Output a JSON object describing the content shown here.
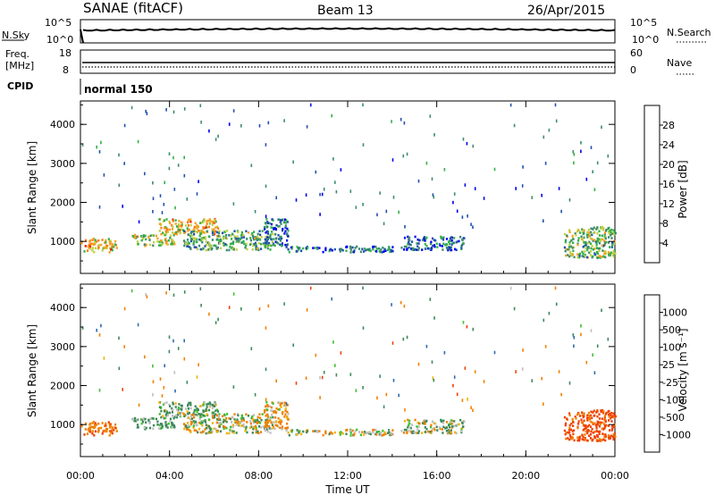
{
  "header": {
    "title": "SANAE (fitACF)",
    "beam": "Beam 13",
    "date": "26/Apr/2015"
  },
  "top_panels": {
    "nsky_label": "N.Sky",
    "nsky_ticks": [
      "10^5",
      "10^0"
    ],
    "nsearch_label": "N.Search",
    "nsearch_ticks": [
      "10^5",
      "10^0"
    ],
    "freq_label": "Freq.",
    "freq_unit": "[MHz]",
    "freq_ticks": [
      "18",
      "8"
    ],
    "nave_label": "Nave",
    "nave_ticks": [
      "60",
      "0"
    ],
    "cpid_label": "CPID",
    "cpid_value": "normal 150"
  },
  "x_axis": {
    "label": "Time UT",
    "ticks": [
      "00:00",
      "04:00",
      "08:00",
      "12:00",
      "16:00",
      "20:00",
      "00:00"
    ]
  },
  "colorbars": {
    "power": {
      "label": "Power [dB]",
      "ticks": [
        "28",
        "24",
        "20",
        "16",
        "12",
        "8",
        "4"
      ],
      "colors": [
        "#0000ee",
        "#2050b0",
        "#3c8c6c",
        "#33b04a",
        "#c0d040",
        "#f4a020",
        "#ff7a10",
        "#ee2000"
      ]
    },
    "velocity": {
      "label": "Velocity [m s⁻¹]",
      "ticks": [
        "1000",
        "500",
        "100",
        "25",
        "-25",
        "-100",
        "-500",
        "-1000"
      ],
      "colors": [
        "#1e3cc8",
        "#2e6ab0",
        "#3c8a5a",
        "#40c030",
        "#bfbfbf",
        "#f0b000",
        "#f08000",
        "#f04000",
        "#e00000"
      ]
    }
  },
  "chart_data": [
    {
      "type": "heatmap",
      "title": "",
      "xlabel": "Time UT",
      "ylabel": "Slant Range [km]",
      "y_ticks": [
        "4000",
        "3000",
        "2000",
        "1000"
      ],
      "xlim": [
        0,
        24
      ],
      "ylim": [
        180,
        4600
      ],
      "quantity": "Power [dB]",
      "zlim": [
        0,
        30
      ],
      "regions": [
        {
          "t": [
            0.0,
            1.6
          ],
          "r": [
            750,
            1100
          ],
          "value": 20
        },
        {
          "t": [
            2.3,
            4.2
          ],
          "r": [
            900,
            1200
          ],
          "value": 16
        },
        {
          "t": [
            3.5,
            6.2
          ],
          "r": [
            1200,
            1600
          ],
          "value": 20
        },
        {
          "t": [
            4.6,
            8.6
          ],
          "r": [
            800,
            1300
          ],
          "value": 12
        },
        {
          "t": [
            8.2,
            9.3
          ],
          "r": [
            900,
            1600
          ],
          "value": 8
        },
        {
          "t": [
            9.2,
            14.5
          ],
          "r": [
            750,
            900
          ],
          "value": 8
        },
        {
          "t": [
            14.5,
            17.2
          ],
          "r": [
            800,
            1150
          ],
          "value": 6
        },
        {
          "t": [
            21.7,
            24.0
          ],
          "r": [
            600,
            1400
          ],
          "value": 14
        }
      ]
    },
    {
      "type": "heatmap",
      "title": "",
      "xlabel": "Time UT",
      "ylabel": "Slant Range [km]",
      "y_ticks": [
        "4000",
        "3000",
        "2000",
        "1000"
      ],
      "xlim": [
        0,
        24
      ],
      "ylim": [
        180,
        4600
      ],
      "quantity": "Velocity [m s⁻¹]",
      "zlim": [
        -1000,
        1000
      ],
      "regions": [
        {
          "t": [
            0.0,
            1.6
          ],
          "r": [
            750,
            1100
          ],
          "value": -200
        },
        {
          "t": [
            2.3,
            4.2
          ],
          "r": [
            900,
            1200
          ],
          "value": 100
        },
        {
          "t": [
            3.5,
            6.2
          ],
          "r": [
            1200,
            1600
          ],
          "value": 80
        },
        {
          "t": [
            4.6,
            8.6
          ],
          "r": [
            800,
            1300
          ],
          "value": 0
        },
        {
          "t": [
            8.2,
            9.3
          ],
          "r": [
            900,
            1600
          ],
          "value": -80
        },
        {
          "t": [
            9.2,
            14.5
          ],
          "r": [
            750,
            900
          ],
          "value": 0
        },
        {
          "t": [
            14.5,
            17.2
          ],
          "r": [
            800,
            1150
          ],
          "value": 10
        },
        {
          "t": [
            21.7,
            24.0
          ],
          "r": [
            600,
            1400
          ],
          "value": -300
        }
      ]
    }
  ]
}
